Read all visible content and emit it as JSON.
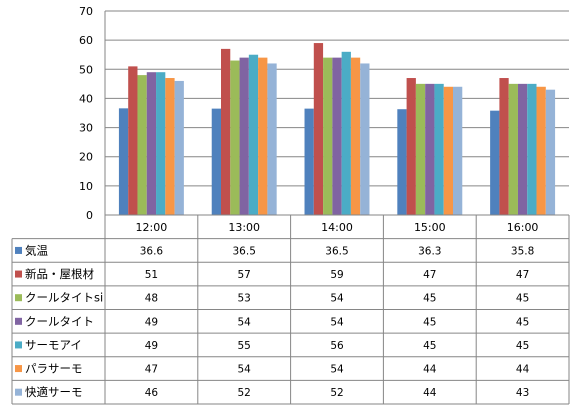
{
  "chart_data": {
    "type": "bar",
    "title": "",
    "xlabel": "",
    "ylabel": "",
    "ylim": [
      0,
      70
    ],
    "yticks": [
      0,
      10,
      20,
      30,
      40,
      50,
      60,
      70
    ],
    "grid": true,
    "legend_placement": "data-table",
    "categories": [
      "12:00",
      "13:00",
      "14:00",
      "15:00",
      "16:00"
    ],
    "series": [
      {
        "name": "気温",
        "color": "#4f81bd",
        "values": [
          36.6,
          36.5,
          36.5,
          36.3,
          35.8
        ],
        "labels": [
          "36.6",
          "36.5",
          "36.5",
          "36.3",
          "35.8"
        ]
      },
      {
        "name": "新品・屋根材",
        "color": "#c0504d",
        "values": [
          51,
          57,
          59,
          47,
          47
        ],
        "labels": [
          "51",
          "57",
          "59",
          "47",
          "47"
        ]
      },
      {
        "name": "クールタイトsi",
        "color": "#9bbb59",
        "values": [
          48,
          53,
          54,
          45,
          45
        ],
        "labels": [
          "48",
          "53",
          "54",
          "45",
          "45"
        ]
      },
      {
        "name": "クールタイト",
        "color": "#8064a2",
        "values": [
          49,
          54,
          54,
          45,
          45
        ],
        "labels": [
          "49",
          "54",
          "54",
          "45",
          "45"
        ]
      },
      {
        "name": "サーモアイ",
        "color": "#4bacc6",
        "values": [
          49,
          55,
          56,
          45,
          45
        ],
        "labels": [
          "49",
          "55",
          "56",
          "45",
          "45"
        ]
      },
      {
        "name": "パラサーモ",
        "color": "#f79646",
        "values": [
          47,
          54,
          54,
          44,
          44
        ],
        "labels": [
          "47",
          "54",
          "54",
          "44",
          "44"
        ]
      },
      {
        "name": "快適サーモ",
        "color": "#95b3d7",
        "values": [
          46,
          52,
          52,
          44,
          43
        ],
        "labels": [
          "46",
          "52",
          "52",
          "44",
          "43"
        ]
      }
    ]
  }
}
